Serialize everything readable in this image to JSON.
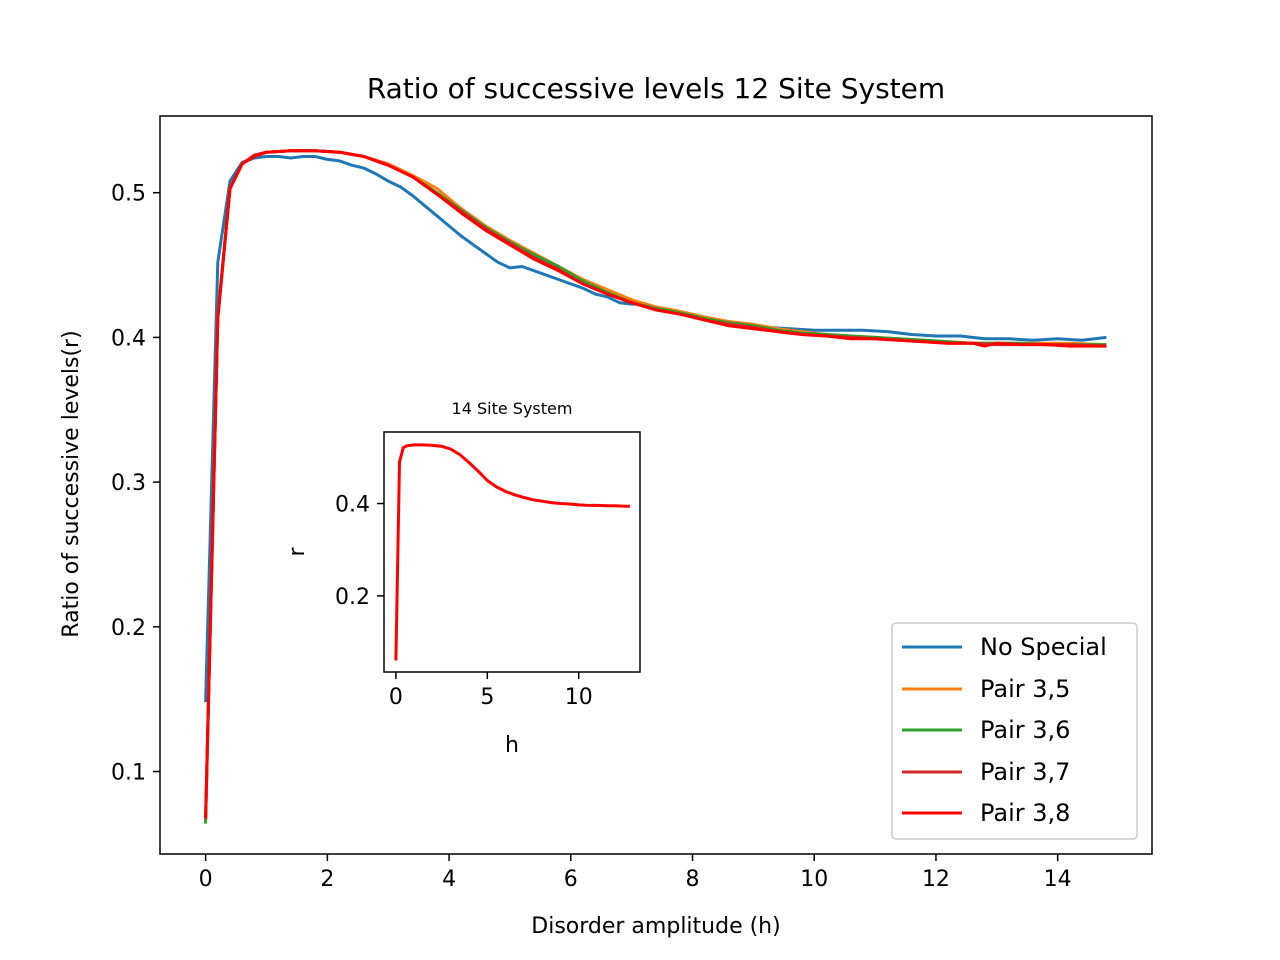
{
  "chart_data": {
    "main": {
      "type": "line",
      "title": "Ratio of successive levels 12 Site System",
      "xlabel": "Disorder amplitude (h)",
      "ylabel": "Ratio of successive levels(r)",
      "xlim": [
        -0.75,
        15.55
      ],
      "ylim": [
        0.043,
        0.553
      ],
      "xticks": [
        0,
        2,
        4,
        6,
        8,
        10,
        12,
        14
      ],
      "yticks": [
        0.1,
        0.2,
        0.3,
        0.4,
        0.5
      ],
      "ytick_labels": [
        "0.1",
        "0.2",
        "0.3",
        "0.4",
        "0.5"
      ],
      "legend_position": "lower right",
      "series": [
        {
          "name": "No Special",
          "color": "#1f77b4",
          "x": [
            0,
            0.2,
            0.4,
            0.6,
            0.8,
            1.0,
            1.2,
            1.4,
            1.6,
            1.8,
            2.0,
            2.2,
            2.4,
            2.6,
            2.8,
            3.0,
            3.2,
            3.4,
            3.6,
            3.8,
            4.0,
            4.2,
            4.4,
            4.6,
            4.8,
            5.0,
            5.2,
            5.4,
            5.6,
            5.8,
            6.0,
            6.2,
            6.4,
            6.6,
            6.8,
            7.0,
            7.2,
            7.6,
            8.0,
            8.4,
            8.8,
            9.2,
            9.6,
            10.0,
            10.4,
            10.8,
            11.2,
            11.6,
            12.0,
            12.4,
            12.8,
            13.2,
            13.6,
            14.0,
            14.4,
            14.8
          ],
          "y": [
            0.148,
            0.452,
            0.508,
            0.521,
            0.524,
            0.525,
            0.525,
            0.524,
            0.525,
            0.525,
            0.523,
            0.522,
            0.519,
            0.517,
            0.513,
            0.508,
            0.504,
            0.498,
            0.491,
            0.484,
            0.477,
            0.47,
            0.464,
            0.458,
            0.452,
            0.448,
            0.449,
            0.446,
            0.443,
            0.44,
            0.437,
            0.434,
            0.43,
            0.428,
            0.424,
            0.423,
            0.423,
            0.419,
            0.416,
            0.412,
            0.409,
            0.407,
            0.406,
            0.405,
            0.405,
            0.405,
            0.404,
            0.402,
            0.401,
            0.401,
            0.399,
            0.399,
            0.398,
            0.399,
            0.398,
            0.4
          ]
        },
        {
          "name": "Pair 3,5",
          "color": "#ff7f0e",
          "x": [
            0,
            0.2,
            0.4,
            0.6,
            0.8,
            1.0,
            1.4,
            1.8,
            2.2,
            2.6,
            3.0,
            3.4,
            3.8,
            4.2,
            4.6,
            5.0,
            5.4,
            5.8,
            6.2,
            6.6,
            7.0,
            7.4,
            7.8,
            8.2,
            8.6,
            9.0,
            9.4,
            9.8,
            10.2,
            10.6,
            11.0,
            11.4,
            11.8,
            12.2,
            12.6,
            13.0,
            13.4,
            13.8,
            14.2,
            14.8
          ],
          "y": [
            0.066,
            0.415,
            0.503,
            0.52,
            0.526,
            0.528,
            0.529,
            0.529,
            0.528,
            0.525,
            0.52,
            0.512,
            0.503,
            0.489,
            0.477,
            0.467,
            0.458,
            0.449,
            0.44,
            0.433,
            0.426,
            0.421,
            0.418,
            0.414,
            0.411,
            0.409,
            0.406,
            0.404,
            0.402,
            0.401,
            0.4,
            0.399,
            0.398,
            0.397,
            0.396,
            0.396,
            0.396,
            0.396,
            0.396,
            0.395
          ]
        },
        {
          "name": "Pair 3,6",
          "color": "#2ca02c",
          "x": [
            0,
            0.2,
            0.4,
            0.6,
            0.8,
            1.0,
            1.4,
            1.8,
            2.2,
            2.6,
            3.0,
            3.4,
            3.8,
            4.2,
            4.6,
            5.0,
            5.4,
            5.8,
            6.2,
            6.6,
            7.0,
            7.4,
            7.8,
            8.2,
            8.6,
            9.0,
            9.4,
            9.8,
            10.2,
            10.6,
            11.0,
            11.4,
            11.8,
            12.2,
            12.6,
            13.0,
            13.4,
            13.8,
            14.2,
            14.8
          ],
          "y": [
            0.064,
            0.414,
            0.503,
            0.52,
            0.526,
            0.528,
            0.529,
            0.529,
            0.528,
            0.525,
            0.519,
            0.511,
            0.5,
            0.488,
            0.476,
            0.466,
            0.457,
            0.449,
            0.439,
            0.431,
            0.424,
            0.42,
            0.417,
            0.413,
            0.41,
            0.408,
            0.405,
            0.403,
            0.402,
            0.401,
            0.4,
            0.399,
            0.398,
            0.397,
            0.396,
            0.396,
            0.396,
            0.395,
            0.395,
            0.395
          ]
        },
        {
          "name": "Pair 3,7",
          "color": "#d62728",
          "x": [
            0,
            0.2,
            0.4,
            0.6,
            0.8,
            1.0,
            1.4,
            1.8,
            2.2,
            2.6,
            3.0,
            3.4,
            3.8,
            4.2,
            4.6,
            5.0,
            5.4,
            5.8,
            6.2,
            6.6,
            7.0,
            7.4,
            7.8,
            8.2,
            8.6,
            9.0,
            9.4,
            9.8,
            10.2,
            10.6,
            11.0,
            11.4,
            11.8,
            12.2,
            12.6,
            13.0,
            13.4,
            13.8,
            14.2,
            14.8
          ],
          "y": [
            0.067,
            0.414,
            0.503,
            0.52,
            0.526,
            0.528,
            0.529,
            0.529,
            0.528,
            0.525,
            0.519,
            0.511,
            0.499,
            0.487,
            0.475,
            0.465,
            0.455,
            0.447,
            0.437,
            0.43,
            0.424,
            0.419,
            0.416,
            0.412,
            0.409,
            0.407,
            0.404,
            0.402,
            0.401,
            0.4,
            0.399,
            0.398,
            0.397,
            0.396,
            0.396,
            0.395,
            0.395,
            0.395,
            0.395,
            0.394
          ]
        },
        {
          "name": "Pair 3,8",
          "color": "#ff0000",
          "x": [
            0,
            0.2,
            0.4,
            0.6,
            0.8,
            1.0,
            1.4,
            1.8,
            2.2,
            2.6,
            3.0,
            3.4,
            3.8,
            4.2,
            4.6,
            5.0,
            5.4,
            5.8,
            6.2,
            6.6,
            7.0,
            7.4,
            7.8,
            8.2,
            8.6,
            9.0,
            9.4,
            9.8,
            10.2,
            10.6,
            11.0,
            11.4,
            11.8,
            12.2,
            12.6,
            12.8,
            13.0,
            13.4,
            13.8,
            14.2,
            14.8
          ],
          "y": [
            0.068,
            0.413,
            0.503,
            0.52,
            0.525,
            0.528,
            0.529,
            0.529,
            0.528,
            0.525,
            0.519,
            0.511,
            0.499,
            0.486,
            0.474,
            0.464,
            0.454,
            0.446,
            0.437,
            0.43,
            0.424,
            0.419,
            0.416,
            0.412,
            0.408,
            0.406,
            0.404,
            0.402,
            0.401,
            0.399,
            0.399,
            0.398,
            0.397,
            0.396,
            0.396,
            0.394,
            0.396,
            0.395,
            0.395,
            0.394,
            0.394
          ]
        }
      ]
    },
    "inset": {
      "type": "line",
      "title": "14 Site System",
      "xlabel": "h",
      "ylabel": "r",
      "xlim": [
        -0.65,
        13.35
      ],
      "ylim": [
        0.035,
        0.555
      ],
      "xticks": [
        0,
        5,
        10
      ],
      "yticks": [
        0.2,
        0.4
      ],
      "ytick_labels": [
        "0.2",
        "0.4"
      ],
      "series": [
        {
          "name": "14 Site System",
          "color": "#ff0000",
          "x": [
            0,
            0.2,
            0.4,
            0.6,
            1.0,
            1.5,
            2.0,
            2.5,
            3.0,
            3.5,
            4.0,
            4.5,
            5.0,
            5.5,
            6.0,
            6.5,
            7.0,
            7.5,
            8.0,
            8.5,
            9.0,
            9.5,
            10.0,
            10.5,
            11.0,
            11.5,
            12.0,
            12.5,
            12.8
          ],
          "y": [
            0.06,
            0.49,
            0.521,
            0.525,
            0.527,
            0.527,
            0.526,
            0.524,
            0.518,
            0.506,
            0.489,
            0.47,
            0.45,
            0.436,
            0.426,
            0.419,
            0.413,
            0.408,
            0.405,
            0.402,
            0.4,
            0.399,
            0.397,
            0.396,
            0.396,
            0.395,
            0.395,
            0.394,
            0.394
          ]
        }
      ]
    }
  }
}
